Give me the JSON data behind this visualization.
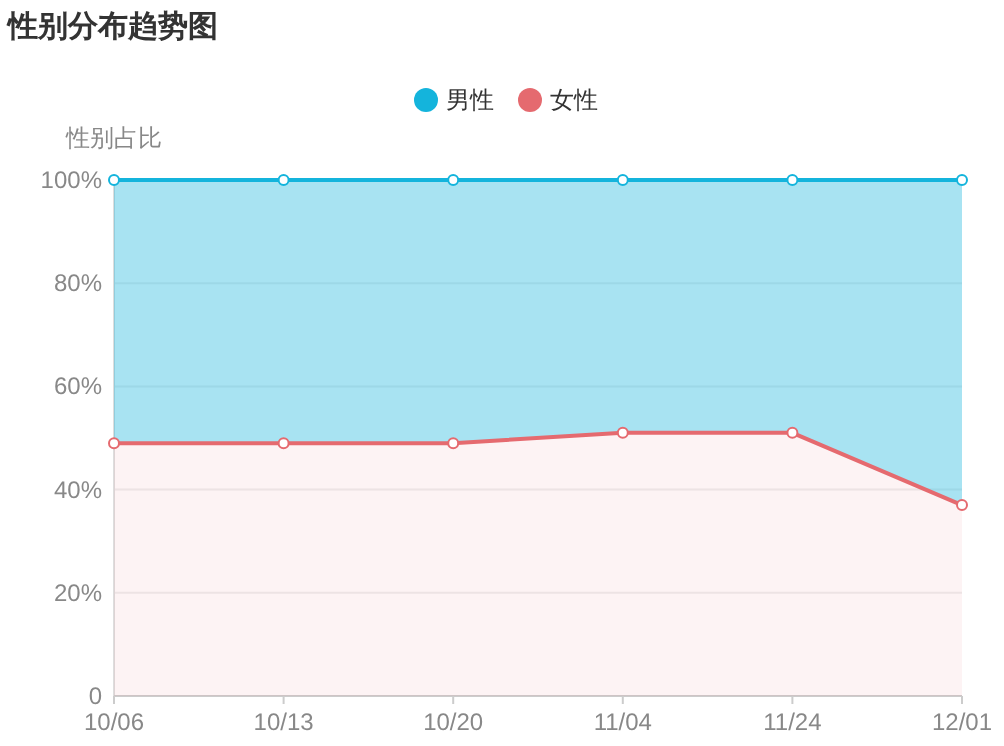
{
  "chart_data": {
    "type": "area",
    "title": "性别分布趋势图",
    "ylabel": "性别占比",
    "stacked": true,
    "legend": "top",
    "grid": "y",
    "marker": "circle",
    "line_style": "solid",
    "categories": [
      "10/06",
      "10/13",
      "10/20",
      "11/04",
      "11/24",
      "12/01"
    ],
    "series": [
      {
        "name": "女性",
        "color": "#e56a6f",
        "values": [
          49,
          49,
          49,
          51,
          51,
          37
        ]
      },
      {
        "name": "男性",
        "color": "#14b4dc",
        "values": [
          51,
          51,
          51,
          49,
          49,
          63
        ]
      }
    ],
    "ylim": [
      0,
      100
    ],
    "yticks": [
      0,
      {
        "value": 20,
        "label": "20%"
      },
      {
        "value": 40,
        "label": "40%"
      },
      {
        "value": 60,
        "label": "60%"
      },
      {
        "value": 80,
        "label": "80%"
      },
      {
        "value": 100,
        "label": "100%"
      }
    ]
  }
}
